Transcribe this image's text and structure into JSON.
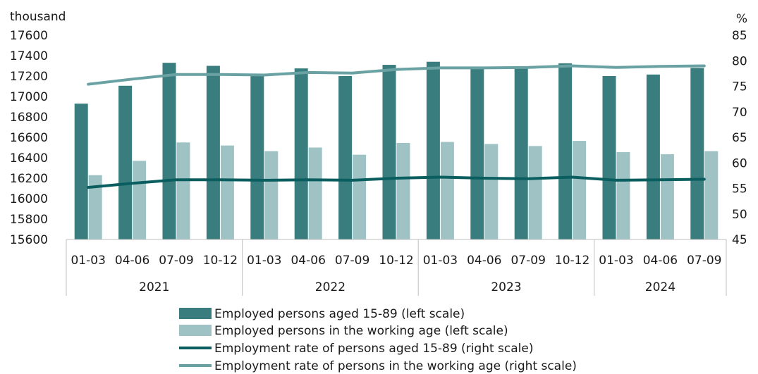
{
  "chart_data": {
    "type": "bar",
    "left_axis": {
      "unit": "thousand",
      "min": 15600,
      "max": 17600,
      "step": 200
    },
    "right_axis": {
      "unit": "%",
      "min": 45,
      "max": 85,
      "step": 5
    },
    "years": [
      {
        "label": "2021",
        "span": 4
      },
      {
        "label": "2022",
        "span": 4
      },
      {
        "label": "2023",
        "span": 4
      },
      {
        "label": "2024",
        "span": 3
      }
    ],
    "categories": [
      "01-03",
      "04-06",
      "07-09",
      "10-12",
      "01-03",
      "04-06",
      "07-09",
      "10-12",
      "01-03",
      "04-06",
      "07-09",
      "10-12",
      "01-03",
      "04-06",
      "07-09"
    ],
    "series": [
      {
        "name": "Employed persons aged 15-89 (left scale)",
        "kind": "bar",
        "axis": "left",
        "color": "#3a7d7e",
        "values": [
          16930,
          17105,
          17330,
          17300,
          17215,
          17275,
          17200,
          17310,
          17340,
          17285,
          17290,
          17325,
          17200,
          17215,
          17280
        ]
      },
      {
        "name": "Employed persons in the working age (left scale)",
        "kind": "bar",
        "axis": "left",
        "color": "#9fc3c4",
        "values": [
          16230,
          16370,
          16550,
          16520,
          16465,
          16500,
          16430,
          16545,
          16555,
          16535,
          16515,
          16565,
          16455,
          16435,
          16465
        ]
      },
      {
        "name": "Employment rate of persons aged 15-89 (right scale)",
        "kind": "line",
        "axis": "right",
        "color": "#0b5e5f",
        "values": [
          55.2,
          56.0,
          56.7,
          56.7,
          56.6,
          56.7,
          56.6,
          57.0,
          57.2,
          57.0,
          56.9,
          57.2,
          56.6,
          56.7,
          56.8
        ]
      },
      {
        "name": "Employment rate of persons in the working age (right scale)",
        "kind": "line",
        "axis": "right",
        "color": "#6aa2a4",
        "values": [
          75.4,
          76.4,
          77.3,
          77.3,
          77.2,
          77.7,
          77.6,
          78.3,
          78.6,
          78.6,
          78.7,
          79.0,
          78.7,
          78.9,
          79.0
        ]
      }
    ]
  }
}
